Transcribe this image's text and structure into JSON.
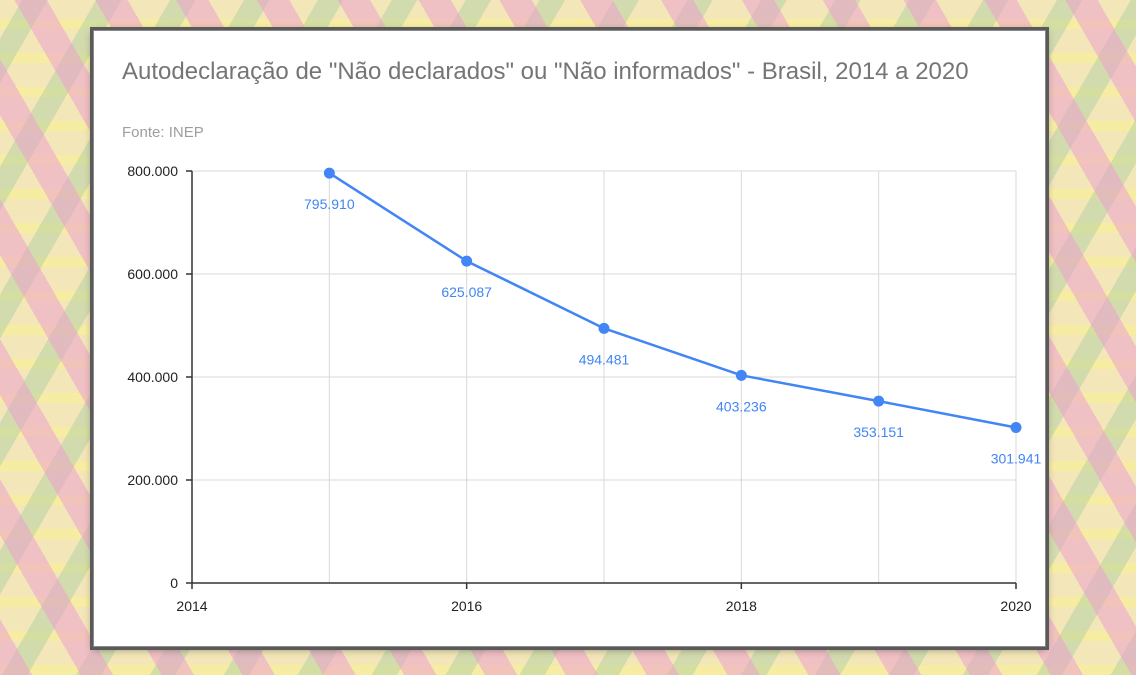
{
  "colors": {
    "series": "#4285f4",
    "text": "#757575",
    "grid": "#d9d9d9"
  },
  "chart_data": {
    "type": "line",
    "title": "Autodeclaração de \"Não declarados\" ou \"Não informados\" - Brasil, 2014 a 2020",
    "subtitle": "Fonte: INEP",
    "xlabel": "",
    "ylabel": "",
    "x": [
      2015,
      2016,
      2017,
      2018,
      2019,
      2020
    ],
    "values": [
      795910,
      625087,
      494481,
      403236,
      353151,
      301941
    ],
    "data_labels": [
      "795.910",
      "625.087",
      "494.481",
      "403.236",
      "353.151",
      "301.941"
    ],
    "xlim": [
      2014,
      2020
    ],
    "ylim": [
      0,
      800000
    ],
    "x_ticks": [
      2014,
      2016,
      2018,
      2020
    ],
    "x_tick_labels": [
      "2014",
      "2016",
      "2018",
      "2020"
    ],
    "y_ticks": [
      0,
      200000,
      400000,
      600000,
      800000
    ],
    "y_tick_labels": [
      "0",
      "200.000",
      "400.000",
      "600.000",
      "800.000"
    ],
    "grid": true,
    "legend": "none"
  }
}
